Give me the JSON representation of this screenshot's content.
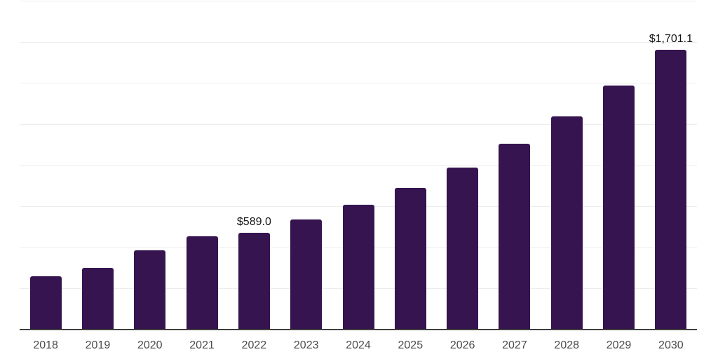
{
  "chart_data": {
    "type": "bar",
    "title": "",
    "xlabel": "",
    "ylabel": "",
    "categories": [
      "2018",
      "2019",
      "2020",
      "2021",
      "2022",
      "2023",
      "2024",
      "2025",
      "2026",
      "2027",
      "2028",
      "2029",
      "2030"
    ],
    "values": [
      324,
      377,
      483,
      569,
      589.0,
      670,
      761,
      863,
      987,
      1132,
      1297,
      1486,
      1701.1
    ],
    "labeled_points": [
      {
        "category": "2022",
        "label": "$589.0"
      },
      {
        "category": "2030",
        "label": "$1,701.1"
      }
    ],
    "ylim": [
      0,
      2000
    ],
    "y_step": 250,
    "grid": true,
    "y_tick_labels_shown": false,
    "legend": "none",
    "colors": {
      "bar": "#351450",
      "axis_line": "#3f3f3f",
      "gridline": "#ededed",
      "tick_label": "#4b4b4b",
      "data_label": "#141414",
      "background": "#ffffff"
    }
  }
}
